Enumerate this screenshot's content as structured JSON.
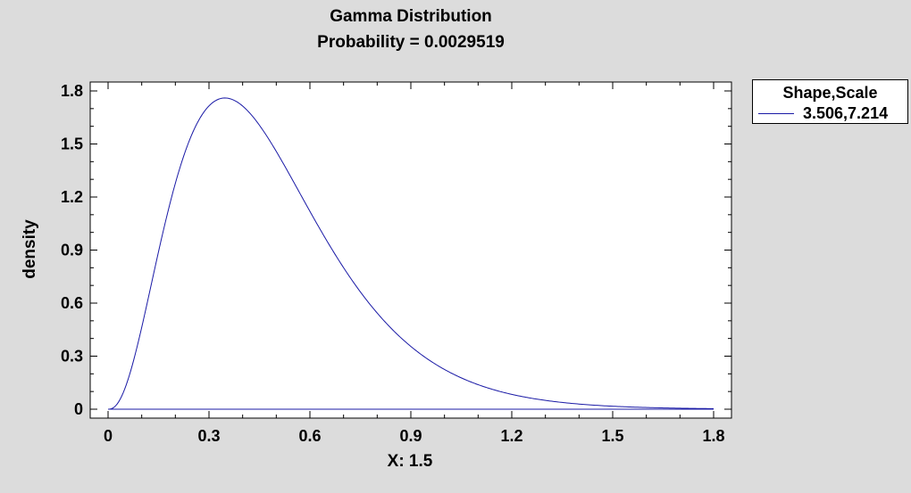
{
  "chart_data": {
    "type": "line",
    "title": "Gamma Distribution",
    "subtitle": "Probability = 0.0029519",
    "xlabel": "X: 1.5",
    "ylabel": "density",
    "xlim": [
      0,
      1.8
    ],
    "ylim": [
      0,
      1.8
    ],
    "xticks": [
      "0",
      "0.3",
      "0.6",
      "0.9",
      "1.2",
      "1.5",
      "1.8"
    ],
    "yticks": [
      "0",
      "0.3",
      "0.6",
      "0.9",
      "1.2",
      "1.5",
      "1.8"
    ],
    "grid": false,
    "legend_position": "right",
    "legend_title": "Shape,Scale",
    "series": [
      {
        "name": "3.506,7.214",
        "color": "#1a1aa6",
        "shape": 3.506,
        "rate": 7.214,
        "x": [
          0,
          0.05,
          0.1,
          0.15,
          0.2,
          0.25,
          0.3,
          0.35,
          0.4,
          0.5,
          0.6,
          0.7,
          0.8,
          0.9,
          1.0,
          1.1,
          1.2,
          1.3,
          1.4,
          1.5,
          1.6,
          1.7,
          1.8
        ],
        "y": [
          0,
          0.16,
          0.72,
          1.21,
          1.54,
          1.7,
          1.76,
          1.76,
          1.71,
          1.51,
          1.21,
          0.91,
          0.66,
          0.45,
          0.3,
          0.19,
          0.12,
          0.07,
          0.045,
          0.027,
          0.016,
          0.009,
          0.005
        ]
      }
    ],
    "baseline": 0
  }
}
